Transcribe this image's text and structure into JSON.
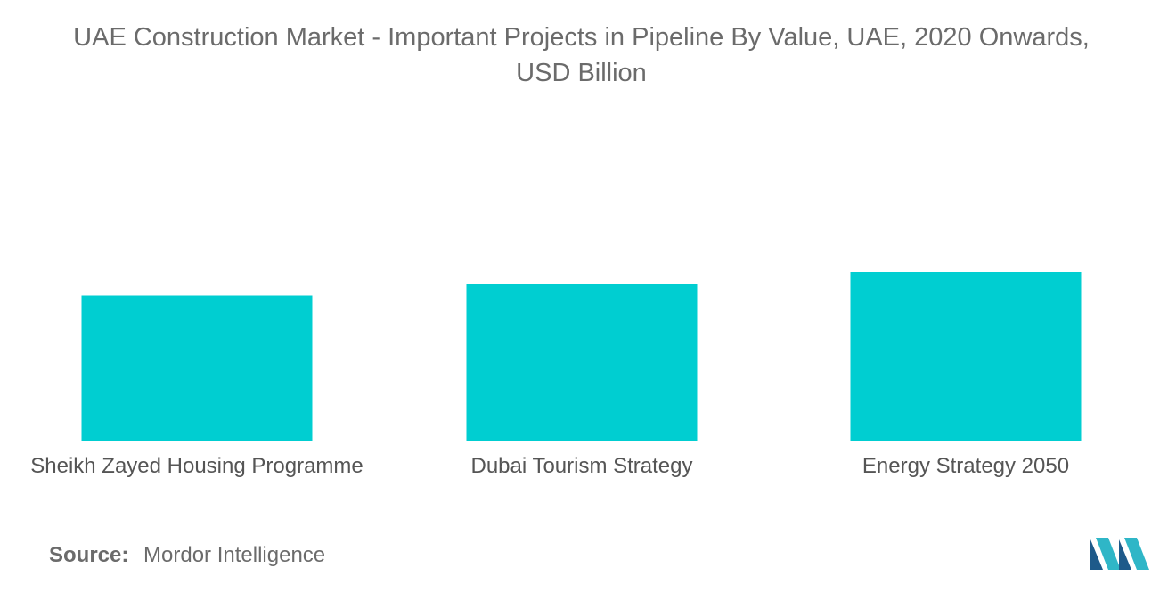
{
  "title_line1": "UAE Construction Market - Important Projects in Pipeline By Value, UAE, 2020 Onwards,",
  "title_line2": "USD Billion",
  "source": {
    "label": "Source:",
    "text": "Mordor Intelligence"
  },
  "colors": {
    "bar": "#00CED1",
    "logo_dark": "#1e5a8a",
    "logo_light": "#2fb6c7"
  },
  "chart_data": {
    "type": "bar",
    "title": "UAE Construction Market - Important Projects in Pipeline By Value, UAE, 2020 Onwards, USD Billion",
    "xlabel": "",
    "ylabel": "",
    "categories": [
      "Sheikh Zayed Housing Programme",
      "Dubai Tourism Strategy",
      "Energy Strategy 2050"
    ],
    "values": [
      32.7,
      35.2,
      38
    ],
    "ylim": [
      0,
      38
    ],
    "grid": false,
    "legend": "none"
  }
}
